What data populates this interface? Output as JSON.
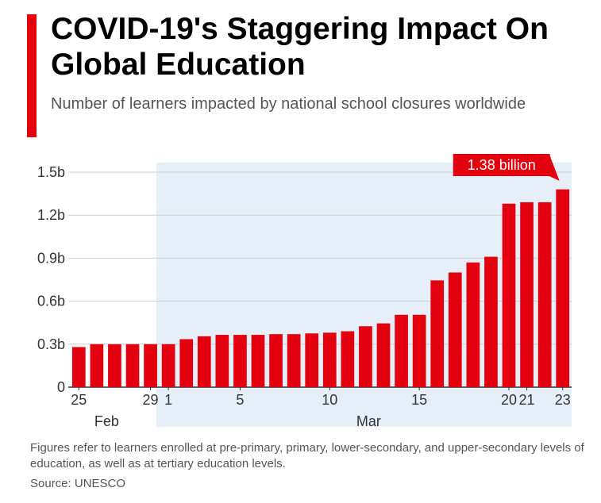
{
  "header": {
    "title": "COVID-19's Staggering Impact On Global Education",
    "subtitle": "Number of learners impacted by national school closures worldwide"
  },
  "colors": {
    "accent": "#e3000f",
    "bar": "#e3000f",
    "highlight_band": "#e6eff8"
  },
  "chart_data": {
    "type": "bar",
    "title": "COVID-19's Staggering Impact On Global Education",
    "subtitle": "Number of learners impacted by national school closures worldwide",
    "unit": "learners",
    "ylim": [
      0,
      1.5
    ],
    "yticks": [
      0,
      0.3,
      0.6,
      0.9,
      1.2,
      1.5
    ],
    "ytick_labels": [
      "0",
      "0.3b",
      "0.6b",
      "0.9b",
      "1.2b",
      "1.5b"
    ],
    "grid": true,
    "categories": [
      "Feb 25",
      "Feb 26",
      "Feb 27",
      "Feb 28",
      "Feb 29",
      "Mar 1",
      "Mar 2",
      "Mar 3",
      "Mar 4",
      "Mar 5",
      "Mar 6",
      "Mar 7",
      "Mar 8",
      "Mar 9",
      "Mar 10",
      "Mar 11",
      "Mar 12",
      "Mar 13",
      "Mar 14",
      "Mar 15",
      "Mar 16",
      "Mar 17",
      "Mar 18",
      "Mar 19",
      "Mar 20",
      "Mar 21",
      "Mar 22",
      "Mar 23"
    ],
    "values": [
      0.28,
      0.3,
      0.3,
      0.3,
      0.3,
      0.3,
      0.335,
      0.355,
      0.365,
      0.365,
      0.365,
      0.37,
      0.37,
      0.375,
      0.38,
      0.39,
      0.425,
      0.445,
      0.505,
      0.505,
      0.745,
      0.8,
      0.87,
      0.91,
      1.28,
      1.29,
      1.29,
      1.38
    ],
    "x_tick_labels": [
      {
        "index": 0,
        "text": "25"
      },
      {
        "index": 4,
        "text": "29"
      },
      {
        "index": 5,
        "text": "1"
      },
      {
        "index": 9,
        "text": "5"
      },
      {
        "index": 14,
        "text": "10"
      },
      {
        "index": 19,
        "text": "15"
      },
      {
        "index": 24,
        "text": "20"
      },
      {
        "index": 25,
        "text": "21"
      },
      {
        "index": 27,
        "text": "23"
      }
    ],
    "month_labels": [
      {
        "text": "Feb",
        "from_index": 0,
        "to_index": 4
      },
      {
        "text": "Mar",
        "from_index": 5,
        "to_index": 27
      }
    ],
    "highlight_from_index": 5,
    "callout": {
      "index": 27,
      "text": "1.38 billion"
    }
  },
  "footnote": {
    "text": "Figures refer to learners enrolled at pre-primary, primary, lower-secondary, and upper-secondary levels of education, as well as at tertiary education levels.",
    "source": "Source: UNESCO"
  }
}
